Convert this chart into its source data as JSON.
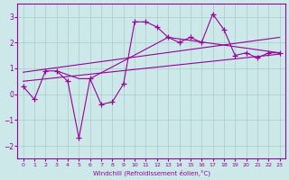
{
  "xlabel": "Windchill (Refroidissement éolien,°C)",
  "background_color": "#cce8e8",
  "line_color": "#990099",
  "grid_color": "#aacccc",
  "xlim": [
    -0.5,
    23.5
  ],
  "ylim": [
    -2.5,
    3.5
  ],
  "yticks": [
    -2,
    -1,
    0,
    1,
    2,
    3
  ],
  "xticks": [
    0,
    1,
    2,
    3,
    4,
    5,
    6,
    7,
    8,
    9,
    10,
    11,
    12,
    13,
    14,
    15,
    16,
    17,
    18,
    19,
    20,
    21,
    22,
    23
  ],
  "scatter_x": [
    0,
    1,
    2,
    3,
    4,
    5,
    6,
    7,
    8,
    9,
    10,
    11,
    12,
    13,
    14,
    15,
    16,
    17,
    18,
    19,
    20,
    21,
    22,
    23
  ],
  "scatter_y": [
    0.3,
    -0.2,
    0.9,
    0.9,
    0.5,
    -1.7,
    0.6,
    -0.4,
    -0.3,
    0.4,
    2.8,
    2.8,
    2.6,
    2.2,
    2.0,
    2.2,
    2.0,
    3.1,
    2.5,
    1.5,
    1.6,
    1.4,
    1.6,
    1.6
  ],
  "trend1_x": [
    0,
    23
  ],
  "trend1_y": [
    0.5,
    1.55
  ],
  "trend2_x": [
    0,
    23
  ],
  "trend2_y": [
    0.85,
    2.2
  ],
  "connect_x": [
    3,
    5,
    6,
    13,
    23
  ],
  "connect_y": [
    0.9,
    0.6,
    0.6,
    2.2,
    1.6
  ]
}
